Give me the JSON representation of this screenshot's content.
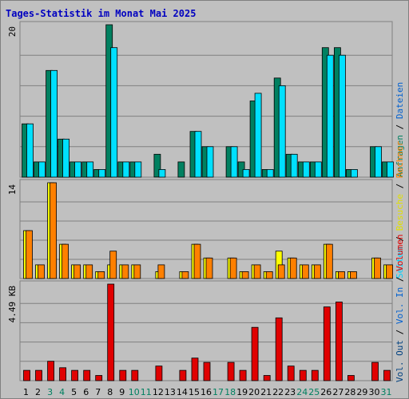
{
  "chart_data": {
    "type": "bar",
    "title": "Tages-Statistik im Monat Mai 2025",
    "categories": [
      "1",
      "2",
      "3",
      "4",
      "5",
      "6",
      "7",
      "8",
      "9",
      "10",
      "11",
      "12",
      "13",
      "14",
      "15",
      "16",
      "17",
      "18",
      "19",
      "20",
      "21",
      "22",
      "23",
      "24",
      "25",
      "26",
      "27",
      "28",
      "29",
      "30",
      "31"
    ],
    "weekend_categories": [
      "3",
      "4",
      "10",
      "11",
      "17",
      "18",
      "24",
      "25",
      "31"
    ],
    "panels": [
      {
        "id": "top",
        "ytick_label": "20",
        "ymax": 20,
        "series": [
          {
            "name": "Anfragen",
            "color": "#008060",
            "values": [
              7,
              2,
              14,
              5,
              2,
              2,
              1,
              20,
              2,
              2,
              0,
              3,
              0,
              2,
              6,
              4,
              0,
              4,
              2,
              10,
              1,
              13,
              3,
              2,
              2,
              17,
              17,
              1,
              0,
              4,
              2
            ]
          },
          {
            "name": "Dateien",
            "color": "#00e0ff",
            "values": [
              7,
              2,
              14,
              5,
              2,
              2,
              1,
              17,
              2,
              2,
              0,
              1,
              0,
              0,
              6,
              4,
              0,
              4,
              1,
              11,
              1,
              12,
              3,
              2,
              2,
              16,
              16,
              1,
              0,
              4,
              2
            ]
          }
        ]
      },
      {
        "id": "middle",
        "ytick_label": "14",
        "ymax": 14,
        "series": [
          {
            "name": "Seiten",
            "color": "#00c8ff",
            "values": [
              0,
              0,
              0,
              0,
              0,
              0,
              0,
              0,
              0,
              0,
              0,
              0,
              0,
              0,
              0,
              0,
              0,
              0,
              0,
              0,
              0,
              0,
              0,
              0,
              0,
              0,
              0,
              0,
              0,
              0,
              0
            ]
          },
          {
            "name": "Besuche",
            "color": "#ffff00",
            "values": [
              7,
              2,
              14,
              5,
              2,
              2,
              1,
              2,
              2,
              2,
              0,
              1,
              0,
              1,
              5,
              3,
              0,
              3,
              1,
              2,
              1,
              4,
              3,
              2,
              2,
              5,
              1,
              1,
              0,
              3,
              2
            ]
          },
          {
            "name": "Rechner",
            "color": "#ff8000",
            "values": [
              7,
              2,
              14,
              5,
              2,
              2,
              1,
              4,
              2,
              2,
              0,
              2,
              0,
              1,
              5,
              3,
              0,
              3,
              1,
              2,
              1,
              2,
              3,
              2,
              2,
              5,
              1,
              1,
              0,
              3,
              2
            ]
          }
        ]
      },
      {
        "id": "bottom",
        "ytick_label": "4.49 KB",
        "ymax": 4.49,
        "series": [
          {
            "name": "Volumen",
            "color": "#e00000",
            "values": [
              0.48,
              0.48,
              0.9,
              0.6,
              0.48,
              0.48,
              0.24,
              4.49,
              0.48,
              0.48,
              0,
              0.68,
              0,
              0.48,
              1.05,
              0.85,
              0,
              0.85,
              0.48,
              2.48,
              0.24,
              2.92,
              0.68,
              0.48,
              0.48,
              3.43,
              3.66,
              0.24,
              0,
              0.85,
              0.48
            ]
          }
        ]
      }
    ],
    "right_legend": {
      "top": [
        {
          "text": "Anfragen",
          "color": "#008060"
        },
        {
          "text": "Dateien",
          "color": "#0060d0"
        }
      ],
      "middle": [
        {
          "text": "Seiten",
          "color": "#00d0ff"
        },
        {
          "text": "Besuche",
          "color": "#e0e000"
        },
        {
          "text": "Rechner",
          "color": "#ff8000"
        }
      ],
      "bottom": [
        {
          "text": "Vol. Out",
          "color": "#004080"
        },
        {
          "text": "Vol. In",
          "color": "#0060d0"
        },
        {
          "text": "Volumen",
          "color": "#e00000"
        }
      ],
      "separator": "/"
    },
    "grid": true,
    "colors": {
      "background": "#c0c0c0",
      "gridline": "#808080",
      "title": "#0000c0",
      "weekday_label": "#000000",
      "weekend_label": "#008060"
    }
  }
}
